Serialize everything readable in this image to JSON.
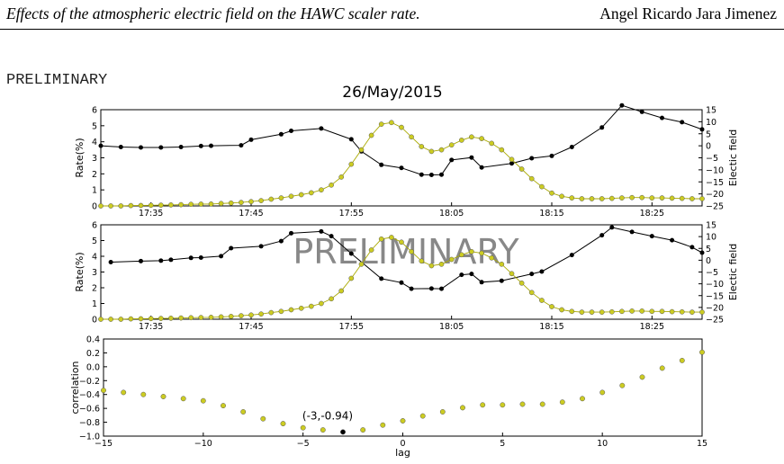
{
  "header": {
    "title": "Effects of the atmospheric electric field on the HAWC scaler rate.",
    "author": "Angel Ricardo Jara Jimenez"
  },
  "preliminary_label": "PRELIMINARY",
  "colors": {
    "electric": "#000000",
    "rate_fill": "#cccc22",
    "rate_line": "#aaaa00"
  },
  "chart_data": [
    {
      "type": "line",
      "title": "26/May/2015",
      "ylabel": "Rate(%)",
      "ylabel_right": "Electic field",
      "xlim": [
        "17:30",
        "18:30"
      ],
      "x_ticks": [
        "17:35",
        "17:45",
        "17:55",
        "18:05",
        "18:15",
        "18:25"
      ],
      "ylim": [
        0,
        6
      ],
      "y_ticks": [
        "0",
        "1",
        "2",
        "3",
        "4",
        "5",
        "6"
      ],
      "ylim_right": [
        -25,
        15
      ],
      "y_ticks_right": [
        "−25",
        "−20",
        "−15",
        "−10",
        "−5",
        "0",
        "5",
        "10",
        "15"
      ],
      "series": [
        {
          "axis": "right",
          "x": [
            "17:30",
            "17:32",
            "17:34",
            "17:36",
            "17:38",
            "17:40",
            "17:41",
            "17:44",
            "17:45",
            "17:48",
            "17:49",
            "17:52",
            "17:55",
            "17:56",
            "17:58",
            "18:00",
            "18:02",
            "18:03",
            "18:04",
            "18:05",
            "18:07",
            "18:08",
            "18:11",
            "18:13",
            "18:15",
            "18:17",
            "18:20",
            "18:22",
            "18:24",
            "18:26",
            "18:28",
            "18:30"
          ],
          "y": [
            0,
            -0.5,
            -0.7,
            -0.7,
            -0.5,
            -0.1,
            0,
            0.2,
            2.5,
            4.8,
            6.2,
            7.2,
            2.7,
            -2.3,
            -7.9,
            -9.2,
            -12,
            -12.1,
            -12,
            -5.9,
            -4.9,
            -9,
            -7.3,
            -5.2,
            -4.2,
            -0.5,
            7.6,
            16.8,
            14.1,
            11.6,
            9.8,
            6.8
          ]
        },
        {
          "axis": "left",
          "x": [
            "17:30",
            "17:31",
            "17:32",
            "17:33",
            "17:34",
            "17:35",
            "17:36",
            "17:37",
            "17:38",
            "17:39",
            "17:40",
            "17:41",
            "17:42",
            "17:43",
            "17:44",
            "17:45",
            "17:46",
            "17:47",
            "17:48",
            "17:49",
            "17:50",
            "17:51",
            "17:52",
            "17:53",
            "17:54",
            "17:55",
            "17:56",
            "17:57",
            "17:58",
            "17:59",
            "18:00",
            "18:01",
            "18:02",
            "18:03",
            "18:04",
            "18:05",
            "18:06",
            "18:07",
            "18:08",
            "18:09",
            "18:10",
            "18:11",
            "18:12",
            "18:13",
            "18:14",
            "18:15",
            "18:16",
            "18:17",
            "18:18",
            "18:19",
            "18:20",
            "18:21",
            "18:22",
            "18:23",
            "18:24",
            "18:25",
            "18:26",
            "18:27",
            "18:28",
            "18:29",
            "18:30"
          ],
          "y": [
            0,
            0,
            0,
            0.02,
            0.03,
            0.04,
            0.05,
            0.06,
            0.08,
            0.1,
            0.11,
            0.12,
            0.15,
            0.18,
            0.22,
            0.27,
            0.33,
            0.42,
            0.5,
            0.6,
            0.7,
            0.82,
            1.0,
            1.3,
            1.8,
            2.6,
            3.5,
            4.4,
            5.1,
            5.2,
            4.9,
            4.3,
            3.7,
            3.4,
            3.5,
            3.8,
            4.1,
            4.3,
            4.2,
            3.9,
            3.5,
            2.9,
            2.3,
            1.7,
            1.2,
            0.8,
            0.6,
            0.5,
            0.45,
            0.45,
            0.45,
            0.47,
            0.5,
            0.52,
            0.52,
            0.5,
            0.5,
            0.48,
            0.47,
            0.45,
            0.45
          ]
        }
      ]
    },
    {
      "type": "line",
      "ylabel": "Rate(%)",
      "ylabel_right": "Electic field",
      "watermark": "PRELIMINARY",
      "xlim": [
        "17:30",
        "18:30"
      ],
      "x_ticks": [
        "17:35",
        "17:45",
        "17:55",
        "18:05",
        "18:15",
        "18:25"
      ],
      "ylim": [
        0,
        6
      ],
      "y_ticks": [
        "0",
        "1",
        "2",
        "3",
        "4",
        "5",
        "6"
      ],
      "ylim_right": [
        -25,
        15
      ],
      "y_ticks_right": [
        "−25",
        "−20",
        "−15",
        "−10",
        "−5",
        "0",
        "5",
        "10",
        "15"
      ],
      "series": [
        {
          "axis": "right",
          "x": [
            "17:31",
            "17:34",
            "17:36",
            "17:37",
            "17:39",
            "17:40",
            "17:42",
            "17:43",
            "17:46",
            "17:48",
            "17:49",
            "17:52",
            "17:53",
            "17:55",
            "17:58",
            "18:00",
            "18:01",
            "18:03",
            "18:04",
            "18:06",
            "18:07",
            "18:08",
            "18:10",
            "18:13",
            "18:14",
            "18:17",
            "18:20",
            "18:21",
            "18:23",
            "18:25",
            "18:27",
            "18:29",
            "18:30"
          ],
          "y": [
            -0.8,
            -0.4,
            -0.2,
            0.2,
            1,
            1.1,
            1.7,
            5.1,
            5.9,
            8.1,
            11.4,
            12.2,
            10.2,
            2.8,
            -7.8,
            -9.5,
            -12.1,
            -12,
            -12.1,
            -6.2,
            -5.8,
            -9.3,
            -8.7,
            -5.8,
            -4.8,
            2.2,
            10.6,
            13.9,
            12,
            10.2,
            8.5,
            5.5,
            3.2
          ]
        },
        {
          "axis": "left",
          "x": [
            "17:30",
            "17:31",
            "17:32",
            "17:33",
            "17:34",
            "17:35",
            "17:36",
            "17:37",
            "17:38",
            "17:39",
            "17:40",
            "17:41",
            "17:42",
            "17:43",
            "17:44",
            "17:45",
            "17:46",
            "17:47",
            "17:48",
            "17:49",
            "17:50",
            "17:51",
            "17:52",
            "17:53",
            "17:54",
            "17:55",
            "17:56",
            "17:57",
            "17:58",
            "17:59",
            "18:00",
            "18:01",
            "18:02",
            "18:03",
            "18:04",
            "18:05",
            "18:06",
            "18:07",
            "18:08",
            "18:09",
            "18:10",
            "18:11",
            "18:12",
            "18:13",
            "18:14",
            "18:15",
            "18:16",
            "18:17",
            "18:18",
            "18:19",
            "18:20",
            "18:21",
            "18:22",
            "18:23",
            "18:24",
            "18:25",
            "18:26",
            "18:27",
            "18:28",
            "18:29",
            "18:30"
          ],
          "y": [
            0,
            0,
            0,
            0.02,
            0.03,
            0.04,
            0.05,
            0.06,
            0.08,
            0.1,
            0.11,
            0.12,
            0.15,
            0.18,
            0.22,
            0.27,
            0.33,
            0.42,
            0.5,
            0.6,
            0.7,
            0.82,
            1.0,
            1.3,
            1.8,
            2.6,
            3.5,
            4.4,
            5.1,
            5.2,
            4.9,
            4.3,
            3.7,
            3.4,
            3.5,
            3.8,
            4.1,
            4.3,
            4.2,
            3.9,
            3.5,
            2.9,
            2.3,
            1.7,
            1.2,
            0.8,
            0.6,
            0.5,
            0.45,
            0.45,
            0.45,
            0.47,
            0.5,
            0.52,
            0.52,
            0.5,
            0.5,
            0.48,
            0.47,
            0.45,
            0.45
          ]
        }
      ]
    },
    {
      "type": "scatter",
      "xlabel": "lag",
      "ylabel": "correlation",
      "xlim": [
        -15,
        15
      ],
      "x_ticks": [
        "−15",
        "−10",
        "−5",
        "0",
        "5",
        "10",
        "15"
      ],
      "ylim": [
        -1.0,
        0.4
      ],
      "y_ticks": [
        "−1.0",
        "−0.8",
        "−0.6",
        "−0.4",
        "−0.2",
        "0.0",
        "0.2",
        "0.4"
      ],
      "x": [
        -15,
        -14,
        -13,
        -12,
        -11,
        -10,
        -9,
        -8,
        -7,
        -6,
        -5,
        -4,
        -3,
        -2,
        -1,
        0,
        1,
        2,
        3,
        4,
        5,
        6,
        7,
        8,
        9,
        10,
        11,
        12,
        13,
        14,
        15
      ],
      "y": [
        -0.34,
        -0.37,
        -0.4,
        -0.43,
        -0.46,
        -0.49,
        -0.56,
        -0.65,
        -0.75,
        -0.82,
        -0.88,
        -0.91,
        -0.94,
        -0.91,
        -0.84,
        -0.78,
        -0.71,
        -0.65,
        -0.59,
        -0.55,
        -0.55,
        -0.54,
        -0.54,
        -0.51,
        -0.46,
        -0.37,
        -0.27,
        -0.15,
        -0.02,
        0.09,
        0.21
      ],
      "highlight": {
        "index": 12,
        "label": "(-3,-0.94)"
      }
    }
  ]
}
